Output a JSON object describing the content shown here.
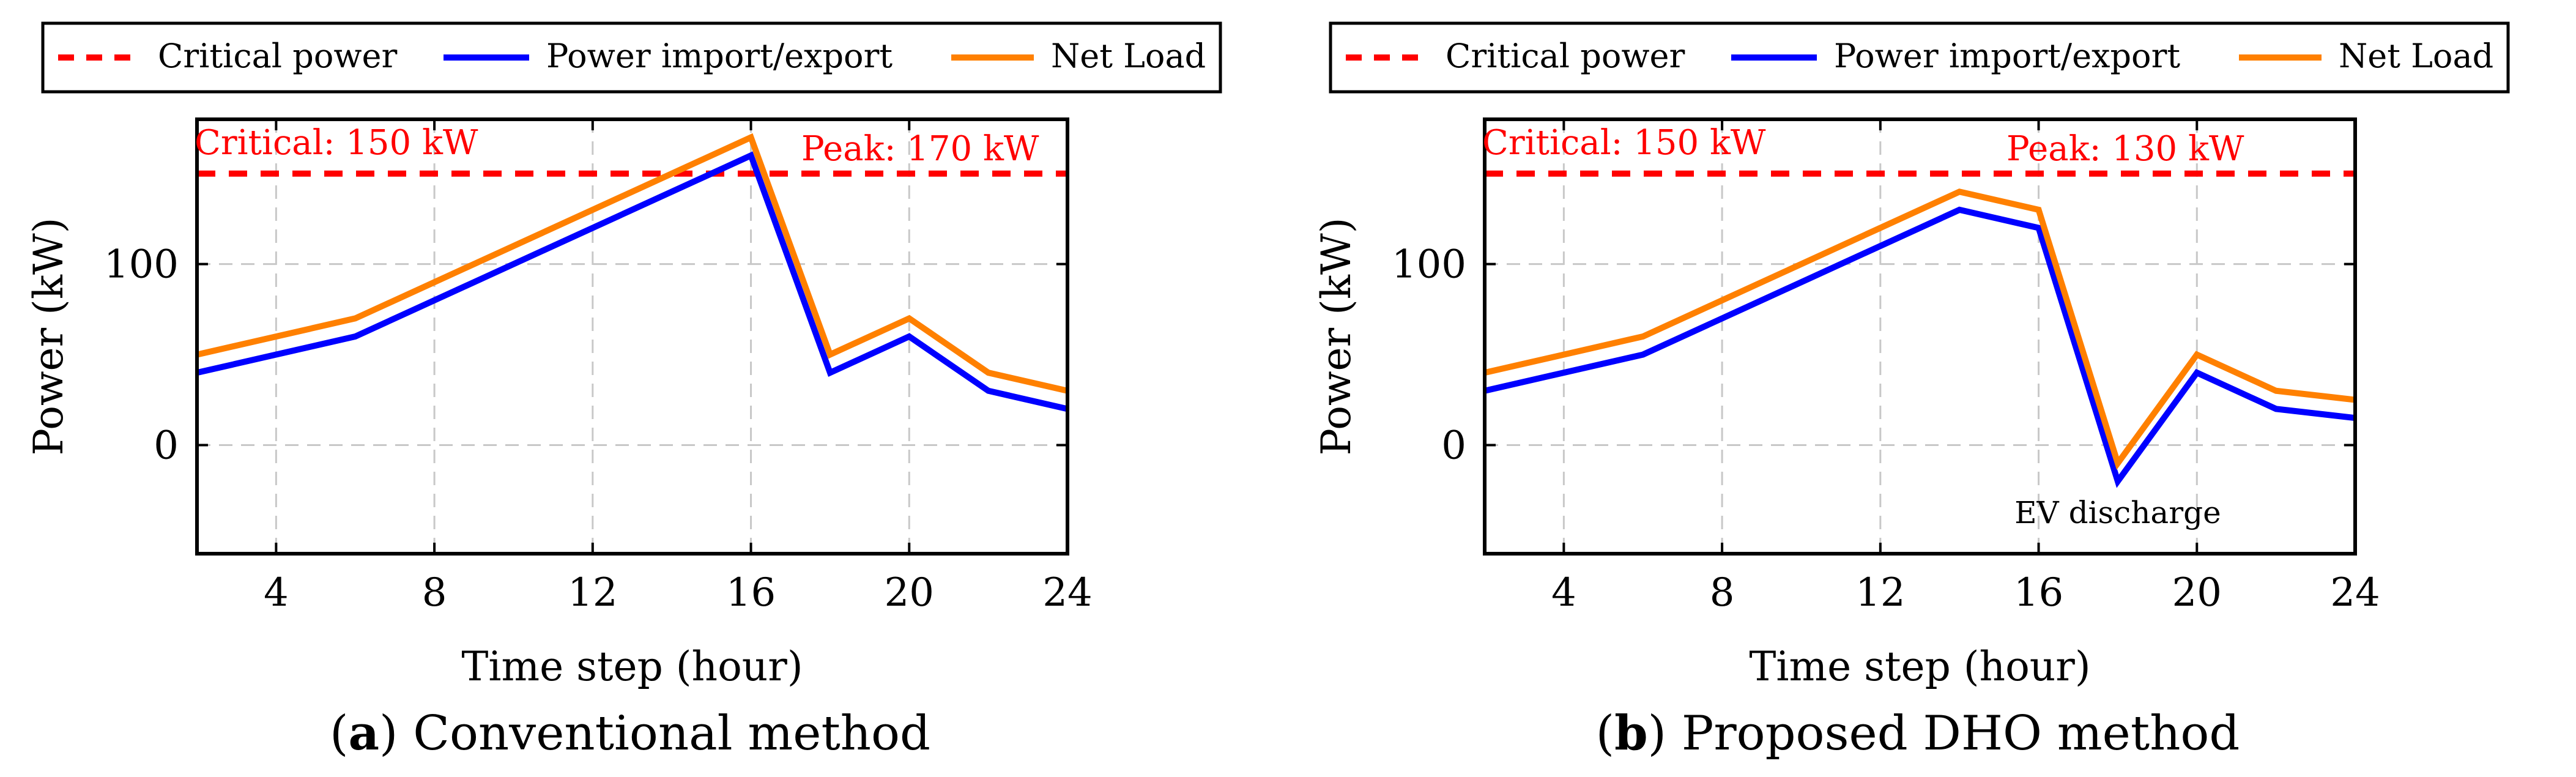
{
  "figure": {
    "panels": [
      {
        "label": "a",
        "caption": "Conventional method",
        "critical_annotation": "Critical: 150 kW",
        "peak_annotation": "Peak: 170 kW",
        "extra_annotation": ""
      },
      {
        "label": "b",
        "caption": "Proposed DHO method",
        "critical_annotation": "Critical: 150 kW",
        "peak_annotation": "Peak: 130 kW",
        "extra_annotation": "EV discharge"
      }
    ]
  },
  "chart_data": [
    {
      "type": "line",
      "title": "",
      "xlabel": "Time step (hour)",
      "ylabel": "Power (kW)",
      "xlim": [
        2,
        24
      ],
      "ylim": [
        -60,
        180
      ],
      "xticks": [
        4,
        8,
        12,
        16,
        20,
        24
      ],
      "yticks": [
        0,
        100
      ],
      "grid": true,
      "legend": "top, outside",
      "colors": {
        "critical": "#ff0000",
        "import": "#0000ff",
        "net": "#ff8000"
      },
      "series": [
        {
          "name": "Critical power",
          "style": "dashed",
          "x": [
            2,
            24
          ],
          "values": [
            150,
            150
          ]
        },
        {
          "name": "Power import/export",
          "style": "solid",
          "x": [
            2,
            6,
            16,
            18,
            20,
            22,
            24
          ],
          "values": [
            40,
            60,
            160,
            40,
            60,
            30,
            20
          ]
        },
        {
          "name": "Net Load",
          "style": "solid",
          "x": [
            2,
            6,
            16,
            18,
            20,
            22,
            24
          ],
          "values": [
            50,
            70,
            170,
            50,
            70,
            40,
            30
          ]
        }
      ]
    },
    {
      "type": "line",
      "title": "",
      "xlabel": "Time step (hour)",
      "ylabel": "Power (kW)",
      "xlim": [
        2,
        24
      ],
      "ylim": [
        -60,
        180
      ],
      "xticks": [
        4,
        8,
        12,
        16,
        20,
        24
      ],
      "yticks": [
        0,
        100
      ],
      "grid": true,
      "legend": "top, outside",
      "colors": {
        "critical": "#ff0000",
        "import": "#0000ff",
        "net": "#ff8000"
      },
      "series": [
        {
          "name": "Critical power",
          "style": "dashed",
          "x": [
            2,
            24
          ],
          "values": [
            150,
            150
          ]
        },
        {
          "name": "Power import/export",
          "style": "solid",
          "x": [
            2,
            6,
            14,
            16,
            18,
            20,
            22,
            24
          ],
          "values": [
            30,
            50,
            130,
            120,
            -20,
            40,
            20,
            15
          ]
        },
        {
          "name": "Net Load",
          "style": "solid",
          "x": [
            2,
            6,
            14,
            16,
            18,
            20,
            22,
            24
          ],
          "values": [
            40,
            60,
            140,
            130,
            -10,
            50,
            30,
            25
          ]
        }
      ]
    }
  ]
}
